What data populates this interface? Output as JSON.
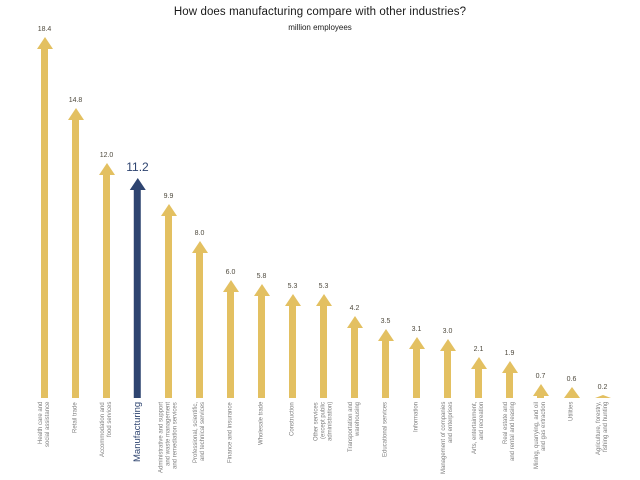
{
  "page": {
    "background": "#ffffff"
  },
  "chart_data": {
    "type": "bar",
    "variant": "arrow-bars-vertical",
    "title": "How does manufacturing compare with other industries?",
    "subtitle": "million employees",
    "unit": "million employees",
    "grid": false,
    "legend": false,
    "axes_shown": false,
    "sort": "descending",
    "ylim": [
      0,
      19
    ],
    "bar_color": "#e3c061",
    "highlight_color": "#2e4470",
    "value_label_color": "#4f4a3e",
    "category_label_color": "#7e7e7e",
    "highlight_index": 3,
    "categories": [
      "Health care and social assistance",
      "Retail trade",
      "Accommodation and food services",
      "Manufacturing",
      "Administrative and support and waste management and remediation services",
      "Professional, scientific, and technical services",
      "Finance and insurance",
      "Wholesale trade",
      "Construction",
      "Other services (except public administration)",
      "Transportation and warehousing",
      "Educational services",
      "Information",
      "Management of companies and enterprises",
      "Arts, entertainment, and recreation",
      "Real estate and and rental and leasing",
      "Mining, quarrying, and oil and gas extraction",
      "Utilities",
      "Agriculture, forestry, fishing and hunting"
    ],
    "label_lines": [
      [
        "Health care and",
        "social assistance"
      ],
      [
        "Retail trade"
      ],
      [
        "Accommodation and",
        "food services"
      ],
      [
        "Manufacturing"
      ],
      [
        "Administrative and support",
        "and waste management",
        "and remediation services"
      ],
      [
        "Professional, scientific,",
        "and technical services"
      ],
      [
        "Finance and insurance"
      ],
      [
        "Wholesale trade"
      ],
      [
        "Construction"
      ],
      [
        "Other services",
        "(except public",
        "administration)"
      ],
      [
        "Transportation and",
        "warehousing"
      ],
      [
        "Educational services"
      ],
      [
        "Information"
      ],
      [
        "Management of companies",
        "and enterprises"
      ],
      [
        "Arts, entertainment,",
        "and recreation"
      ],
      [
        "Real estate and",
        "and rental and leasing"
      ],
      [
        "Mining, quarrying, and oil",
        "and gas extraction"
      ],
      [
        "Utilities"
      ],
      [
        "Agriculture, forestry,",
        "fishing and hunting"
      ]
    ],
    "values": [
      18.4,
      14.8,
      12.0,
      11.2,
      9.9,
      8.0,
      6.0,
      5.8,
      5.3,
      5.3,
      4.2,
      3.5,
      3.1,
      3.0,
      2.1,
      1.9,
      0.7,
      0.6,
      0.2
    ]
  }
}
